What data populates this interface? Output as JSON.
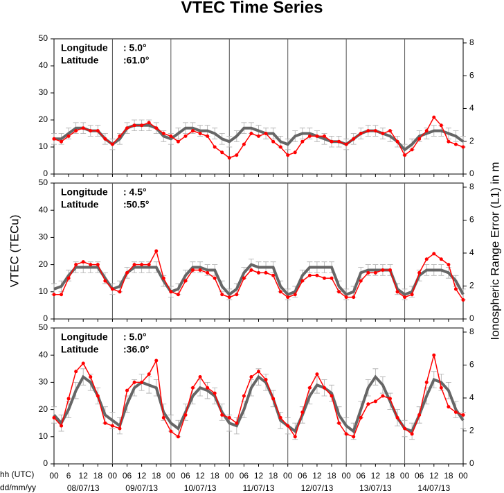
{
  "chart_data": [
    {
      "type": "line",
      "title": "VTEC Time Series",
      "lon_label": "Longitude",
      "lon_value": ":   5.0°",
      "lat_label": "Latitude",
      "lat_value": ":61.0°",
      "xlim": [
        0,
        168
      ],
      "ylim": [
        0,
        50
      ],
      "yticks": [
        0,
        10,
        20,
        30,
        40,
        50
      ],
      "y2lim": [
        0,
        8.25
      ],
      "y2ticks": [
        0,
        2,
        4,
        6,
        8
      ],
      "x": [
        0,
        3,
        6,
        9,
        12,
        15,
        18,
        21,
        24,
        27,
        30,
        33,
        36,
        39,
        42,
        45,
        48,
        51,
        54,
        57,
        60,
        63,
        66,
        69,
        72,
        75,
        78,
        81,
        84,
        87,
        90,
        93,
        96,
        99,
        102,
        105,
        108,
        111,
        114,
        117,
        120,
        123,
        126,
        129,
        132,
        135,
        138,
        141,
        144,
        147,
        150,
        153,
        156,
        159,
        162,
        165,
        168
      ],
      "series": [
        {
          "color": "#666666",
          "error": 2,
          "values": [
            13,
            13,
            15,
            17,
            17,
            16,
            16,
            13,
            11,
            13,
            17,
            18,
            18,
            18,
            17,
            14,
            13,
            15,
            17,
            17,
            16,
            16,
            15,
            13,
            12,
            14,
            17,
            17,
            16,
            15,
            15,
            12,
            11,
            14,
            15,
            15,
            14,
            13,
            12,
            12,
            11,
            13,
            15,
            16,
            16,
            15,
            14,
            12,
            9,
            11,
            14,
            15,
            16,
            16,
            15,
            14,
            12
          ]
        },
        {
          "color": "#ff0000",
          "values": [
            13,
            12,
            14,
            16,
            17,
            16,
            16,
            13,
            11,
            14,
            17,
            18,
            18,
            19,
            17,
            15,
            14,
            12,
            14,
            16,
            15,
            14,
            10,
            8,
            6,
            7,
            11,
            15,
            14,
            15,
            12,
            10,
            7,
            8,
            12,
            14,
            14,
            14,
            12,
            12,
            11,
            13,
            15,
            16,
            16,
            15,
            16,
            12,
            7,
            9,
            13,
            16,
            21,
            18,
            12,
            11,
            10
          ]
        }
      ]
    },
    {
      "type": "line",
      "ylabel": "VTEC (TECu)",
      "y2label": "Ionospheric Range Error (L1) in m",
      "lon_label": "Longitude",
      "lon_value": ":   4.5°",
      "lat_label": "Latitude",
      "lat_value": ":50.5°",
      "xlim": [
        0,
        168
      ],
      "ylim": [
        0,
        50
      ],
      "yticks": [
        0,
        10,
        20,
        30,
        40,
        50
      ],
      "y2lim": [
        0,
        8.25
      ],
      "y2ticks": [
        0,
        2,
        4,
        6,
        8
      ],
      "x": [
        0,
        3,
        6,
        9,
        12,
        15,
        18,
        21,
        24,
        27,
        30,
        33,
        36,
        39,
        42,
        45,
        48,
        51,
        54,
        57,
        60,
        63,
        66,
        69,
        72,
        75,
        78,
        81,
        84,
        87,
        90,
        93,
        96,
        99,
        102,
        105,
        108,
        111,
        114,
        117,
        120,
        123,
        126,
        129,
        132,
        135,
        138,
        141,
        144,
        147,
        150,
        153,
        156,
        159,
        162,
        165,
        168
      ],
      "series": [
        {
          "color": "#666666",
          "error": 2,
          "values": [
            11,
            12,
            16,
            19,
            19,
            19,
            19,
            15,
            11,
            12,
            17,
            19,
            19,
            19,
            19,
            14,
            10,
            11,
            16,
            19,
            19,
            18,
            18,
            12,
            9,
            11,
            17,
            20,
            19,
            19,
            19,
            12,
            9,
            10,
            16,
            19,
            19,
            19,
            19,
            12,
            9,
            10,
            17,
            18,
            18,
            18,
            18,
            11,
            9,
            10,
            16,
            18,
            18,
            18,
            17,
            14,
            9
          ]
        },
        {
          "color": "#ff0000",
          "values": [
            9,
            9,
            15,
            20,
            21,
            20,
            20,
            14,
            11,
            10,
            17,
            20,
            20,
            20,
            25,
            15,
            10,
            9,
            14,
            18,
            18,
            17,
            15,
            9,
            8,
            9,
            15,
            18,
            17,
            17,
            16,
            10,
            8,
            9,
            14,
            16,
            16,
            15,
            15,
            10,
            8,
            8,
            14,
            17,
            17,
            18,
            18,
            10,
            8,
            9,
            17,
            22,
            24,
            22,
            20,
            11,
            7
          ]
        }
      ]
    },
    {
      "type": "line",
      "lon_label": "Longitude",
      "lon_value": ":   5.0°",
      "lat_label": "Latitude",
      "lat_value": ":36.0°",
      "xlabel": "hh (UTC)",
      "datelabel": "dd/mm/yy",
      "dates": [
        "08/07/13",
        "09/07/13",
        "10/07/13",
        "11/07/13",
        "12/07/13",
        "13/07/13",
        "14/07/13"
      ],
      "xlim": [
        0,
        168
      ],
      "ylim": [
        0,
        50
      ],
      "yticks": [
        0,
        10,
        20,
        30,
        40,
        50
      ],
      "y2lim": [
        0,
        8.25
      ],
      "y2ticks": [
        0,
        2,
        4,
        6,
        8
      ],
      "xticks": [
        {
          "value": 0,
          "label": "00"
        },
        6,
        12,
        18,
        {
          "value": 24,
          "label": "00"
        },
        {
          "value": 30,
          "label": "06"
        },
        {
          "value": 36,
          "label": "12"
        },
        {
          "value": 42,
          "label": "18"
        },
        {
          "value": 48,
          "label": "00"
        },
        {
          "value": 54,
          "label": "06"
        },
        {
          "value": 60,
          "label": "12"
        },
        {
          "value": 66,
          "label": "18"
        },
        {
          "value": 72,
          "label": "00"
        },
        {
          "value": 78,
          "label": "06"
        },
        {
          "value": 84,
          "label": "12"
        },
        {
          "value": 90,
          "label": "18"
        },
        {
          "value": 96,
          "label": "00"
        },
        {
          "value": 102,
          "label": "06"
        },
        {
          "value": 108,
          "label": "12"
        },
        {
          "value": 114,
          "label": "18"
        },
        {
          "value": 120,
          "label": "00"
        },
        {
          "value": 126,
          "label": "06"
        },
        {
          "value": 132,
          "label": "12"
        },
        {
          "value": 138,
          "label": "18"
        },
        {
          "value": 144,
          "label": "00"
        },
        {
          "value": 150,
          "label": "06"
        },
        {
          "value": 156,
          "label": "12"
        },
        {
          "value": 162,
          "label": "18"
        },
        {
          "value": 168,
          "label": "00"
        }
      ],
      "x": [
        0,
        3,
        6,
        9,
        12,
        15,
        18,
        21,
        24,
        27,
        30,
        33,
        36,
        39,
        42,
        45,
        48,
        51,
        54,
        57,
        60,
        63,
        66,
        69,
        72,
        75,
        78,
        81,
        84,
        87,
        90,
        93,
        96,
        99,
        102,
        105,
        108,
        111,
        114,
        117,
        120,
        123,
        126,
        129,
        132,
        135,
        138,
        141,
        144,
        147,
        150,
        153,
        156,
        159,
        162,
        165,
        168
      ],
      "series": [
        {
          "color": "#666666",
          "error": 3,
          "values": [
            18,
            15,
            20,
            27,
            32,
            30,
            25,
            18,
            16,
            14,
            22,
            28,
            30,
            29,
            28,
            19,
            15,
            13,
            19,
            25,
            28,
            27,
            25,
            19,
            15,
            14,
            20,
            28,
            32,
            30,
            24,
            16,
            14,
            12,
            18,
            25,
            29,
            28,
            26,
            18,
            14,
            12,
            20,
            28,
            32,
            29,
            23,
            17,
            13,
            12,
            18,
            25,
            31,
            30,
            27,
            20,
            16
          ]
        },
        {
          "color": "#ff0000",
          "values": [
            17,
            14,
            24,
            34,
            37,
            32,
            25,
            15,
            14,
            13,
            27,
            30,
            30,
            33,
            38,
            17,
            12,
            10,
            18,
            28,
            32,
            28,
            26,
            18,
            17,
            15,
            25,
            32,
            34,
            31,
            24,
            17,
            14,
            10,
            19,
            28,
            33,
            28,
            25,
            15,
            11,
            10,
            17,
            22,
            23,
            25,
            24,
            17,
            13,
            11,
            18,
            30,
            40,
            28,
            21,
            19,
            18
          ]
        }
      ]
    }
  ]
}
